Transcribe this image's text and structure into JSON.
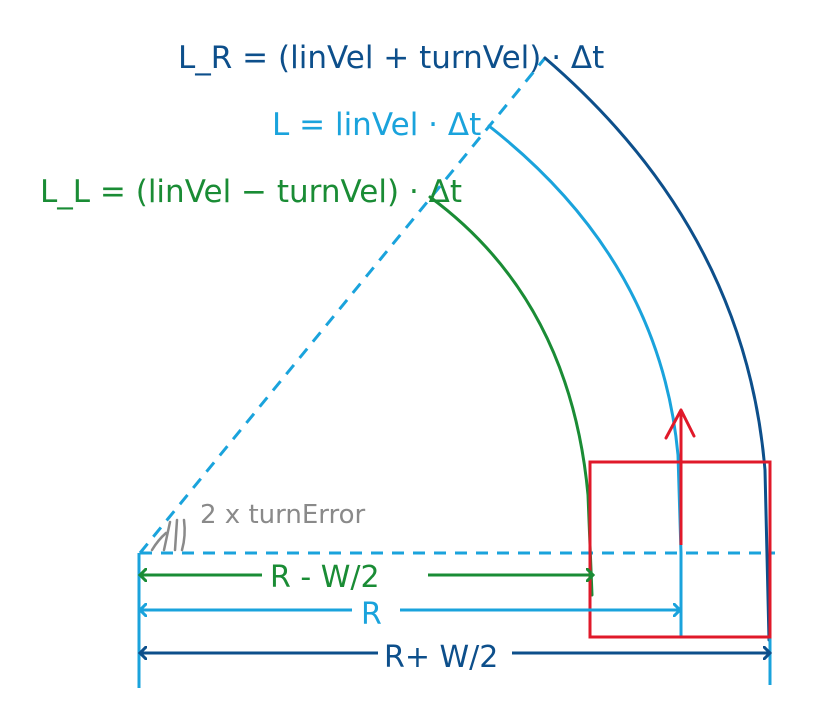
{
  "labels": {
    "right_length": "L_R = (linVel + turnVel) · Δt",
    "center_length": "L = linVel · Δt",
    "left_length": "L_L = (linVel − turnVel) · Δt",
    "angle": "2 x turnError",
    "dim_inner": "R - W/2",
    "dim_center": "R",
    "dim_outer": "R+ W/2"
  },
  "colors": {
    "dark_blue": "#0d4f8b",
    "light_blue": "#1aa3dc",
    "green": "#1a8c35",
    "red": "#e0192a",
    "gray": "#8a8a8a"
  }
}
